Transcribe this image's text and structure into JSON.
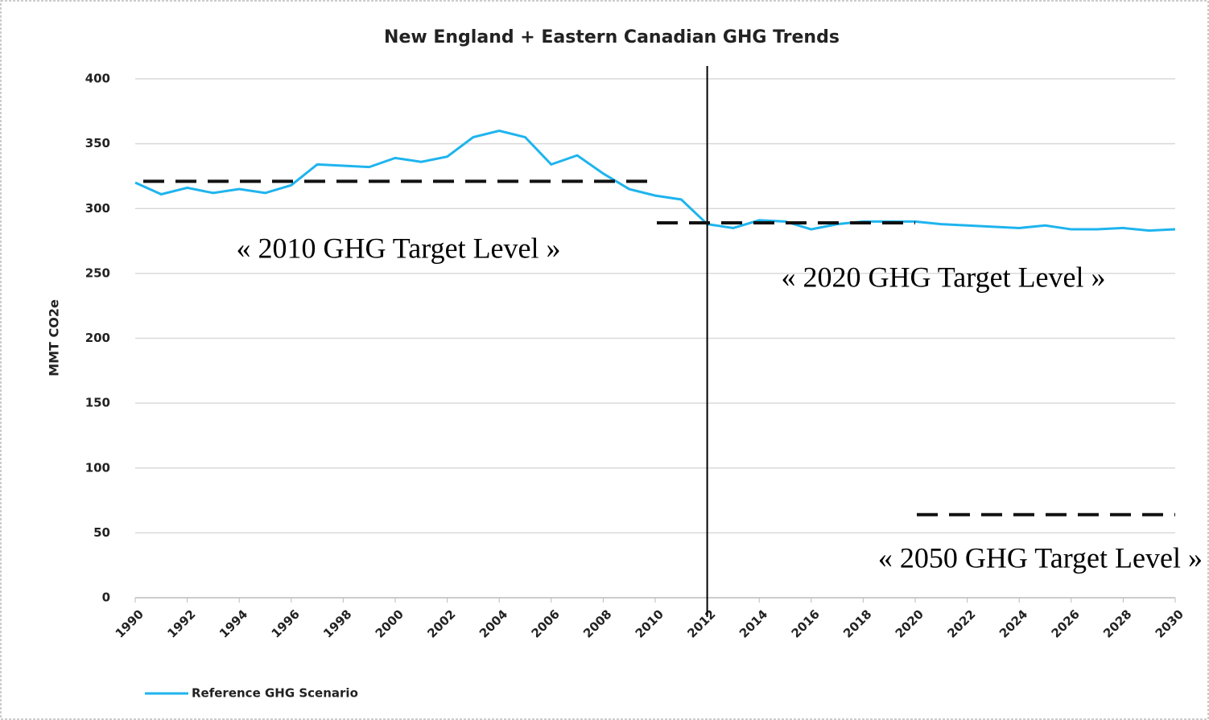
{
  "chart_data": {
    "type": "line",
    "title": "New England + Eastern Canadian GHG Trends",
    "y_label": "MMT CO2e",
    "x": [
      1990,
      1991,
      1992,
      1993,
      1994,
      1995,
      1996,
      1997,
      1998,
      1999,
      2000,
      2001,
      2002,
      2003,
      2004,
      2005,
      2006,
      2007,
      2008,
      2009,
      2010,
      2011,
      2012,
      2013,
      2014,
      2015,
      2016,
      2017,
      2018,
      2019,
      2020,
      2021,
      2022,
      2023,
      2024,
      2025,
      2026,
      2027,
      2028,
      2029,
      2030
    ],
    "series": [
      {
        "name": "Reference GHG Scenario",
        "color": "#1eb4ee",
        "values": [
          320,
          311,
          316,
          312,
          315,
          312,
          318,
          334,
          333,
          332,
          339,
          336,
          340,
          355,
          360,
          355,
          334,
          341,
          327,
          315,
          310,
          307,
          288,
          285,
          291,
          290,
          284,
          288,
          290,
          290,
          290,
          288,
          287,
          286,
          285,
          287,
          284,
          284,
          285,
          283,
          284
        ]
      }
    ],
    "xlim": [
      1990,
      2030
    ],
    "xticks": [
      1990,
      1992,
      1994,
      1996,
      1998,
      2000,
      2002,
      2004,
      2006,
      2008,
      2010,
      2012,
      2014,
      2016,
      2018,
      2020,
      2022,
      2024,
      2026,
      2028,
      2030
    ],
    "ylim": [
      0,
      400
    ],
    "yticks": [
      0,
      50,
      100,
      150,
      200,
      250,
      300,
      350,
      400
    ],
    "grid": true,
    "vline": 2012,
    "target_lines": [
      {
        "label": "« 2010 GHG Target Level »",
        "value": 321,
        "x": [
          1990,
          2010
        ]
      },
      {
        "label": "« 2020 GHG Target Level »",
        "value": 289,
        "x": [
          2010,
          2020
        ]
      },
      {
        "label": "« 2050 GHG Target Level »",
        "value": 64,
        "x": [
          2020,
          2030
        ]
      }
    ]
  }
}
